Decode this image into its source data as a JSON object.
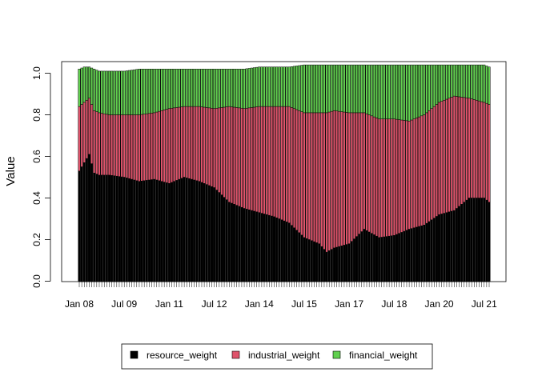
{
  "chart_data": {
    "type": "bar",
    "stacked": true,
    "title": "",
    "xlabel": "",
    "ylabel": "Value",
    "ylim": [
      0,
      1.05
    ],
    "y_ticks": [
      "0.0",
      "0.2",
      "0.4",
      "0.6",
      "0.8",
      "1.0"
    ],
    "x_tick_labels": [
      "Jan 08",
      "Jul 09",
      "Jan 11",
      "Jul 12",
      "Jan 14",
      "Jul 15",
      "Jan 17",
      "Jul 18",
      "Jan 20",
      "Jul 21"
    ],
    "x_tick_months": [
      0,
      18,
      36,
      54,
      72,
      90,
      108,
      126,
      144,
      162
    ],
    "n_months": 165,
    "frequency": "monthly",
    "start": "Jan 08",
    "legend_position": "bottom",
    "colors": {
      "resource_weight": "#000000",
      "industrial_weight": "#DF536B",
      "financial_weight": "#61D04F"
    },
    "anchors": {
      "month_index": [
        0,
        2,
        4,
        6,
        8,
        12,
        18,
        24,
        30,
        36,
        42,
        48,
        54,
        60,
        66,
        72,
        78,
        84,
        90,
        96,
        99,
        102,
        108,
        114,
        120,
        126,
        132,
        138,
        144,
        150,
        156,
        162,
        164
      ],
      "resource_weight": [
        0.53,
        0.57,
        0.61,
        0.52,
        0.51,
        0.51,
        0.5,
        0.48,
        0.49,
        0.47,
        0.5,
        0.48,
        0.45,
        0.38,
        0.35,
        0.33,
        0.31,
        0.28,
        0.21,
        0.18,
        0.14,
        0.16,
        0.18,
        0.25,
        0.21,
        0.22,
        0.25,
        0.27,
        0.32,
        0.34,
        0.4,
        0.4,
        0.38
      ],
      "industrial_weight": [
        0.31,
        0.29,
        0.27,
        0.3,
        0.3,
        0.29,
        0.3,
        0.32,
        0.32,
        0.36,
        0.34,
        0.36,
        0.38,
        0.46,
        0.48,
        0.51,
        0.53,
        0.56,
        0.6,
        0.63,
        0.67,
        0.66,
        0.63,
        0.56,
        0.57,
        0.56,
        0.52,
        0.53,
        0.54,
        0.55,
        0.48,
        0.46,
        0.47
      ],
      "financial_weight": [
        0.18,
        0.17,
        0.15,
        0.2,
        0.2,
        0.21,
        0.21,
        0.22,
        0.21,
        0.19,
        0.18,
        0.18,
        0.19,
        0.18,
        0.19,
        0.19,
        0.19,
        0.19,
        0.23,
        0.23,
        0.23,
        0.22,
        0.23,
        0.23,
        0.26,
        0.26,
        0.27,
        0.24,
        0.18,
        0.15,
        0.16,
        0.18,
        0.18
      ]
    },
    "series": [
      {
        "name": "resource_weight"
      },
      {
        "name": "industrial_weight"
      },
      {
        "name": "financial_weight"
      }
    ]
  }
}
